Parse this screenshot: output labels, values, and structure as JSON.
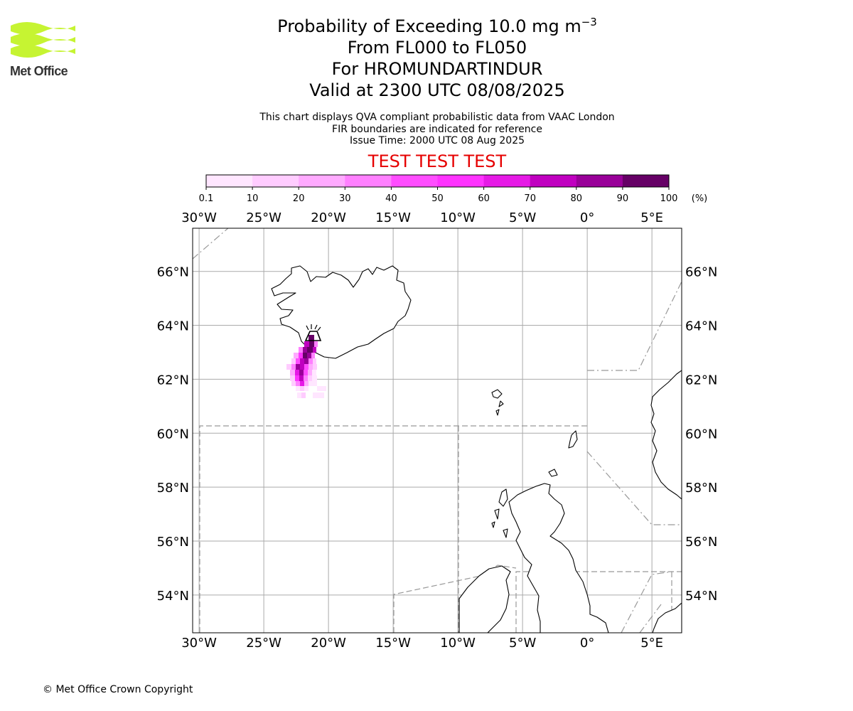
{
  "logo": {
    "text": "Met Office",
    "accent": "#c6f432"
  },
  "header": {
    "title_prefix": "Probability of Exceeding 10.0 mg m",
    "title_exponent": "−3",
    "line2": "From FL000 to FL050",
    "line3": "For HROMUNDARTINDUR",
    "line4": "Valid at 2300 UTC 08/08/2025"
  },
  "subheader": {
    "line1": "This chart displays QVA compliant probabilistic data from VAAC London",
    "line2": "FIR boundaries are indicated for reference",
    "line3": "Issue Time: 2000 UTC 08 Aug 2025"
  },
  "banner": {
    "text": "TEST TEST TEST",
    "color": "#e60000"
  },
  "colorbar": {
    "tick_labels": [
      "0.1",
      "10",
      "20",
      "30",
      "40",
      "50",
      "60",
      "70",
      "80",
      "90",
      "100"
    ],
    "unit": "(%)",
    "colors": [
      "#ffe6ff",
      "#ffccff",
      "#ffaaff",
      "#ff80ff",
      "#ff4dff",
      "#ff33ff",
      "#e61ae6",
      "#c000c0",
      "#990099",
      "#660066"
    ]
  },
  "map": {
    "lon_labels": [
      "30°W",
      "25°W",
      "20°W",
      "15°W",
      "10°W",
      "5°W",
      "0°",
      "5°E"
    ],
    "lat_labels": [
      "66°N",
      "64°N",
      "62°N",
      "60°N",
      "58°N",
      "56°N",
      "54°N"
    ],
    "lon_range": [
      -30.5,
      7.3
    ],
    "lat_range": [
      52.6,
      67.6
    ],
    "grid_color": "#aaaaaa",
    "volcano": "HROMUNDARTINDUR"
  },
  "footer": {
    "copyright": "© Met Office Crown Copyright"
  }
}
